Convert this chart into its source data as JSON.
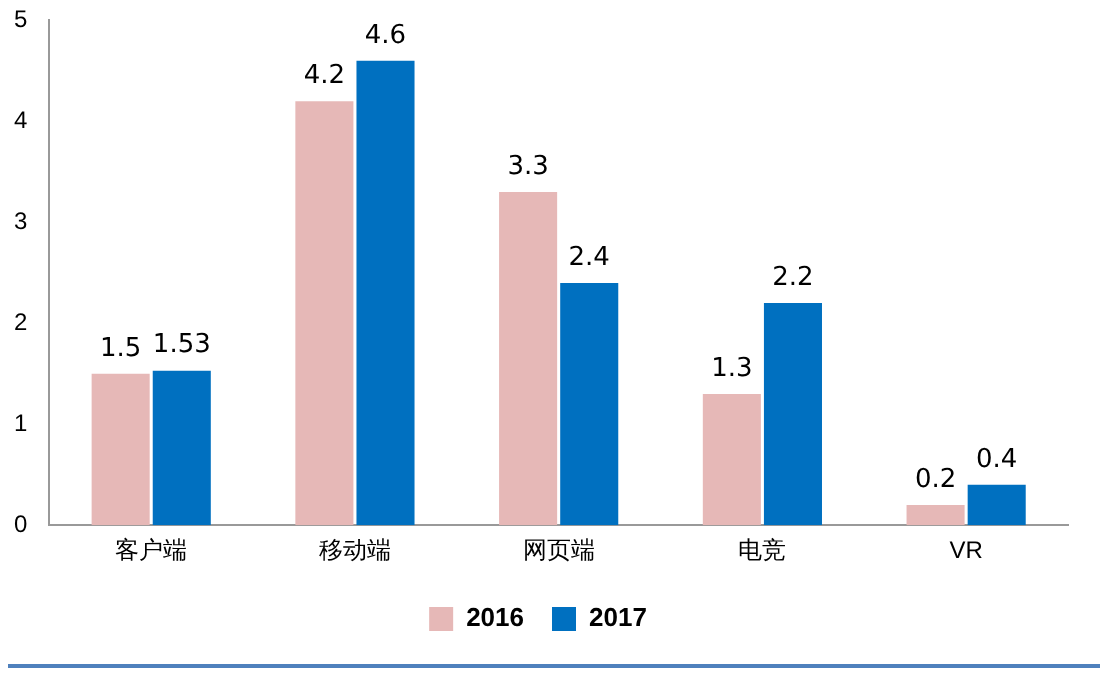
{
  "chart_data": {
    "type": "bar",
    "categories": [
      "客户端",
      "移动端",
      "网页端",
      "电竞",
      "VR"
    ],
    "series": [
      {
        "name": "2016",
        "color": "#e6b8b7",
        "values": [
          1.5,
          4.2,
          3.3,
          1.3,
          0.2
        ]
      },
      {
        "name": "2017",
        "color": "#0070c0",
        "values": [
          1.53,
          4.6,
          2.4,
          2.2,
          0.4
        ]
      }
    ],
    "ylim": [
      0,
      5
    ],
    "yticks": [
      0,
      1,
      2,
      3,
      4,
      5
    ],
    "grid": false,
    "legend": "bottom",
    "data_labels": true
  }
}
